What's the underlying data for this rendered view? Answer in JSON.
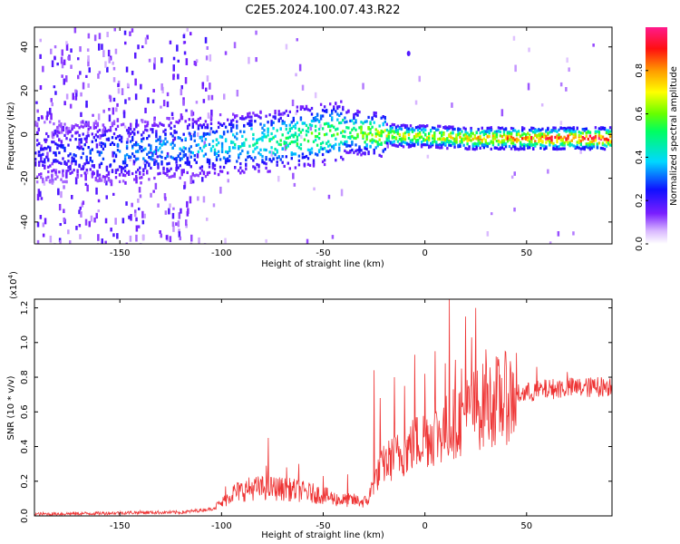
{
  "figure": {
    "title": "C2E5.2024.100.07.43.R22"
  },
  "chart_data": [
    {
      "type": "heatmap",
      "title": "C2E5.2024.100.07.43.R22",
      "xlabel": "Height of straight line (km)",
      "ylabel": "Frequency (Hz)",
      "xlim": [
        -192,
        92
      ],
      "ylim": [
        -50,
        49
      ],
      "xticks": [
        -150,
        -100,
        -50,
        0,
        50
      ],
      "yticks": [
        -40,
        -20,
        0,
        20,
        40
      ],
      "grid": false,
      "colormap": "rainbow (white-violet-blue-cyan-green-yellow-orange-red)",
      "colorbar": {
        "label": "Normalized spectral amplitude",
        "range": [
          0.0,
          1.0
        ],
        "ticks": [
          "0.0",
          "0.2",
          "0.4",
          "0.6",
          "0.8"
        ]
      },
      "ridge": {
        "description": "spectral peak frequency versus height",
        "x": [
          -192,
          -150,
          -120,
          -100,
          -75,
          -50,
          -40,
          -25,
          -10,
          0,
          20,
          40,
          60,
          92
        ],
        "center_hz": [
          -8,
          -8,
          -6,
          -5,
          -3,
          0,
          1,
          0,
          -1,
          -1,
          -2,
          -2,
          -2,
          -2
        ],
        "peak_amplitude": [
          0.2,
          0.3,
          0.35,
          0.4,
          0.5,
          0.55,
          0.55,
          0.65,
          0.7,
          0.7,
          0.75,
          0.8,
          0.9,
          0.95
        ]
      }
    },
    {
      "type": "line",
      "title": "",
      "xlabel": "Height of straight line (km)",
      "ylabel": "SNR (10 * v/v)",
      "scale_label": "(x10",
      "scale_exp": "4",
      "scale_tail": ")",
      "xlim": [
        -192,
        92
      ],
      "ylim": [
        0.0,
        1.25
      ],
      "xticks": [
        -150,
        -100,
        -50,
        0,
        50
      ],
      "yticks": [
        "0.0",
        "0.2",
        "0.4",
        "0.6",
        "0.8",
        "1.0",
        "1.2"
      ],
      "grid": false,
      "color": "#ee3333",
      "series": [
        {
          "x": [
            -192,
            -160,
            -140,
            -120,
            -105,
            -100,
            -95,
            -85,
            -75,
            -65,
            -55,
            -50,
            -45,
            -40,
            -35,
            -30,
            -28,
            -25,
            -20,
            -15,
            -10,
            -5,
            0,
            5,
            10,
            15,
            20,
            25,
            30,
            35,
            40,
            45,
            50,
            55,
            60,
            70,
            80,
            92
          ],
          "base": [
            0.01,
            0.015,
            0.02,
            0.02,
            0.04,
            0.07,
            0.13,
            0.16,
            0.16,
            0.15,
            0.13,
            0.12,
            0.1,
            0.09,
            0.09,
            0.08,
            0.09,
            0.2,
            0.3,
            0.34,
            0.37,
            0.42,
            0.45,
            0.47,
            0.5,
            0.55,
            0.58,
            0.62,
            0.64,
            0.66,
            0.68,
            0.7,
            0.71,
            0.72,
            0.73,
            0.74,
            0.74,
            0.75
          ],
          "spikes": [
            [
              -102,
              0.08
            ],
            [
              -98,
              0.17
            ],
            [
              -78,
              0.29
            ],
            [
              -77,
              0.45
            ],
            [
              -68,
              0.28
            ],
            [
              -62,
              0.3
            ],
            [
              -50,
              0.23
            ],
            [
              -38,
              0.24
            ],
            [
              -25,
              0.84
            ],
            [
              -22,
              0.68
            ],
            [
              -15,
              0.8
            ],
            [
              -10,
              0.75
            ],
            [
              -5,
              0.93
            ],
            [
              0,
              0.82
            ],
            [
              5,
              0.95
            ],
            [
              10,
              0.88
            ],
            [
              12,
              1.25
            ],
            [
              15,
              0.9
            ],
            [
              18,
              0.85
            ],
            [
              20,
              1.15
            ],
            [
              23,
              1.03
            ],
            [
              25,
              1.2
            ],
            [
              30,
              0.96
            ],
            [
              35,
              0.92
            ],
            [
              45,
              0.94
            ],
            [
              55,
              0.86
            ],
            [
              70,
              0.83
            ],
            [
              85,
              0.8
            ]
          ]
        }
      ]
    }
  ]
}
